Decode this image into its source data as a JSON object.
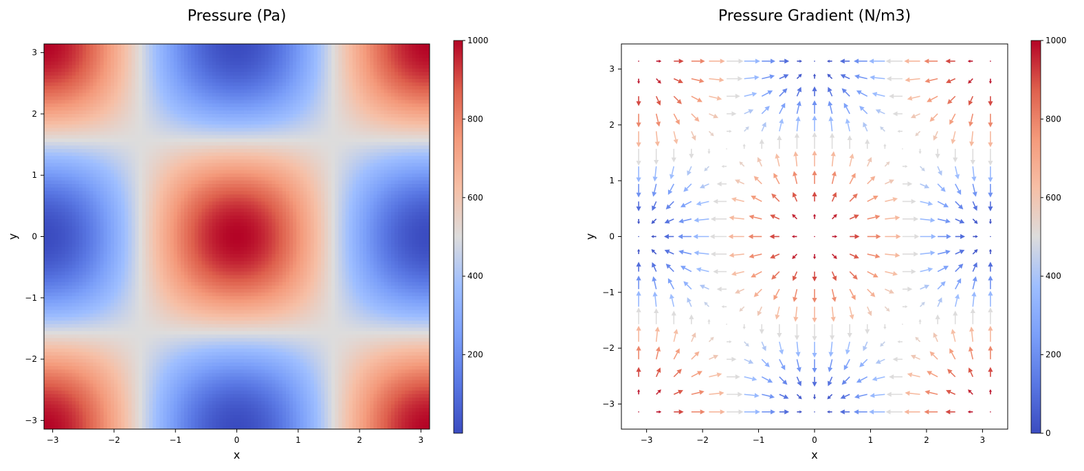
{
  "chart_data": [
    {
      "type": "heatmap",
      "title": "Pressure (Pa)",
      "xlabel": "x",
      "ylabel": "y",
      "xlim": [
        -3.14159,
        3.14159
      ],
      "ylim": [
        -3.14159,
        3.14159
      ],
      "xticks": [
        -3,
        -2,
        -1,
        0,
        1,
        2,
        3
      ],
      "yticks": [
        -3,
        -2,
        -1,
        0,
        1,
        2,
        3
      ],
      "field": "p = 500 + 500*cos(x)*cos(y)",
      "colormap": "coolwarm",
      "colorbar": {
        "range": [
          0,
          1000
        ],
        "ticks": [
          200,
          400,
          600,
          800,
          1000
        ]
      },
      "grid": false
    },
    {
      "type": "quiver",
      "title": "Pressure Gradient (N/m3)",
      "xlabel": "x",
      "ylabel": "y",
      "xlim": [
        -3.45,
        3.45
      ],
      "ylim": [
        -3.45,
        3.45
      ],
      "xticks": [
        -3,
        -2,
        -1,
        0,
        1,
        2,
        3
      ],
      "yticks": [
        -3,
        -2,
        -1,
        0,
        1,
        2,
        3
      ],
      "grid_points": 21,
      "grid_range": [
        -3.14159,
        3.14159
      ],
      "vector": "u = 500*sin(x)*cos(y), v = 500*cos(x)*sin(y)",
      "color_value": "500 + 500*cos(x)*cos(y)",
      "colormap": "coolwarm",
      "colorbar": {
        "range": [
          0,
          1000
        ],
        "ticks": [
          0,
          200,
          400,
          600,
          800,
          1000
        ]
      },
      "grid": false
    }
  ]
}
